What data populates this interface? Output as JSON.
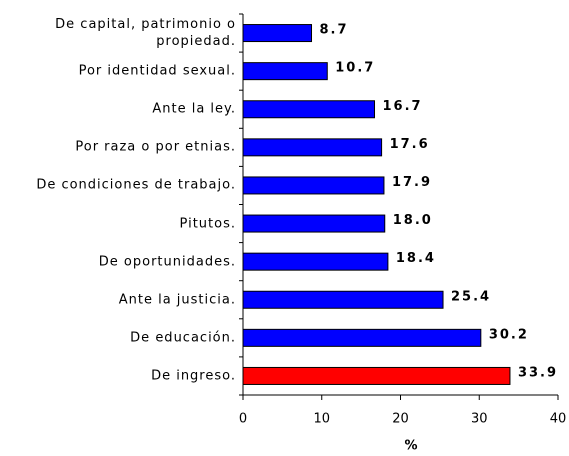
{
  "chart_data": {
    "type": "bar",
    "orientation": "horizontal",
    "x_label": "%",
    "categories": [
      "De capital, patrimonio o propiedad.",
      "Por identidad sexual.",
      "Ante la ley.",
      "Por raza o por etnias.",
      "De condiciones de trabajo.",
      "Pitutos.",
      "De oportunidades.",
      "Ante la justicia.",
      "De educación.",
      "De ingreso."
    ],
    "values": [
      8.7,
      10.7,
      16.7,
      17.6,
      17.9,
      18,
      18.4,
      25.4,
      30.2,
      33.9
    ],
    "value_labels": [
      "8.7",
      "10.7",
      "16.7",
      "17.6",
      "17.9",
      "18.0",
      "18.4",
      "25.4",
      "30.2",
      "33.9"
    ],
    "colors": [
      "#0000ff",
      "#0000ff",
      "#0000ff",
      "#0000ff",
      "#0000ff",
      "#0000ff",
      "#0000ff",
      "#0000ff",
      "#0000ff",
      "#ff0000"
    ],
    "xlim": [
      0,
      40
    ],
    "xticks": [
      0,
      10,
      20,
      30,
      40
    ],
    "grid": false
  }
}
